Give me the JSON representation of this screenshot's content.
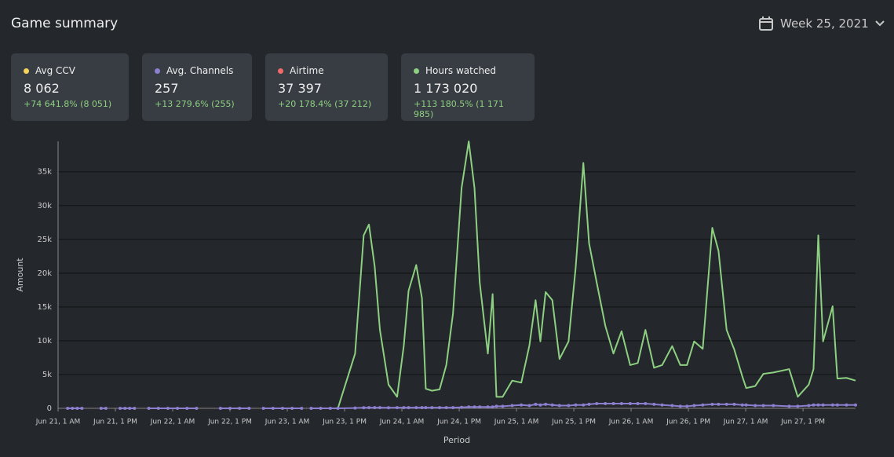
{
  "header": {
    "title": "Game summary",
    "week": "Week 25, 2021"
  },
  "stats": [
    {
      "label": "Avg CCV",
      "value": "8 062",
      "change": "+74 641.8% (8 051)",
      "color": "#f5d35a"
    },
    {
      "label": "Avg. Channels",
      "value": "257",
      "change": "+13 279.6% (255)",
      "color": "#8c7fd0"
    },
    {
      "label": "Airtime",
      "value": "37 397",
      "change": "+20 178.4% (37 212)",
      "color": "#f06a6a"
    },
    {
      "label": "Hours watched",
      "value": "1 173 020",
      "change": "+113 180.5% (1 171 985)",
      "color": "#8ed081"
    }
  ],
  "chart_data": {
    "type": "line",
    "x_label": "Period",
    "y_label": "Amount",
    "grid": true,
    "xlim": [
      0,
      167
    ],
    "ylim": [
      0,
      39500
    ],
    "xticks": [
      {
        "value": 0,
        "label": "Jun 21, 1 AM"
      },
      {
        "value": 12,
        "label": "Jun 21, 1 PM"
      },
      {
        "value": 24,
        "label": "Jun 22, 1 AM"
      },
      {
        "value": 36,
        "label": "Jun 22, 1 PM"
      },
      {
        "value": 48,
        "label": "Jun 23, 1 AM"
      },
      {
        "value": 60,
        "label": "Jun 23, 1 PM"
      },
      {
        "value": 72,
        "label": "Jun 24, 1 AM"
      },
      {
        "value": 84,
        "label": "Jun 24, 1 PM"
      },
      {
        "value": 96,
        "label": "Jun 25, 1 AM"
      },
      {
        "value": 108,
        "label": "Jun 25, 1 PM"
      },
      {
        "value": 120,
        "label": "Jun 26, 1 AM"
      },
      {
        "value": 132,
        "label": "Jun 26, 1 PM"
      },
      {
        "value": 144,
        "label": "Jun 27, 1 AM"
      },
      {
        "value": 156,
        "label": "Jun 27, 1 PM"
      }
    ],
    "yticks": [
      0,
      {
        "value": 5000,
        "label": "5k"
      },
      {
        "value": 10000,
        "label": "10k"
      },
      {
        "value": 15000,
        "label": "15k"
      },
      {
        "value": 20000,
        "label": "20k"
      },
      {
        "value": 25000,
        "label": "25k"
      },
      {
        "value": 30000,
        "label": "30k"
      },
      {
        "value": 35000,
        "label": "35k"
      }
    ],
    "x": [
      2,
      3,
      4,
      5,
      7,
      9,
      10,
      11,
      13,
      14,
      15,
      16,
      17.5,
      19,
      21,
      23,
      25,
      27,
      29,
      31.5,
      34,
      36,
      38,
      40,
      41.5,
      43,
      45,
      47,
      49,
      51,
      52,
      53,
      55,
      57,
      58.6,
      62.2,
      64,
      65.1,
      66.3,
      67.4,
      69.2,
      71,
      72.4,
      73.4,
      75,
      76.2,
      77,
      78.3,
      79.9,
      81.3,
      82.7,
      84.5,
      86,
      87.2,
      88.3,
      90,
      91,
      91.8,
      93.1,
      95.1,
      97,
      98.7,
      100,
      101,
      102.1,
      103.5,
      105,
      106.9,
      108.4,
      110,
      111.2,
      112.8,
      114.6,
      116.3,
      118,
      119.8,
      121.4,
      123,
      124.8,
      126.5,
      128.6,
      130.3,
      131.7,
      133.2,
      135,
      137,
      138.3,
      140,
      141.6,
      143.3,
      144.1,
      146,
      147.7,
      149.8,
      153.1,
      154.9,
      157.2,
      158.2,
      159.2,
      160.2,
      162.2,
      163.2,
      165.1,
      167
    ],
    "series": [
      {
        "color": "#8ed081",
        "markers": false,
        "values": [
          null,
          null,
          null,
          null,
          null,
          null,
          null,
          null,
          null,
          null,
          null,
          null,
          null,
          null,
          null,
          null,
          null,
          null,
          null,
          null,
          null,
          null,
          null,
          null,
          null,
          null,
          null,
          null,
          null,
          null,
          null,
          null,
          null,
          null,
          0,
          8100,
          25600,
          27200,
          21000,
          11600,
          3500,
          1700,
          9300,
          17400,
          21200,
          16300,
          2900,
          2600,
          2800,
          6400,
          14000,
          32600,
          39500,
          32600,
          18600,
          8100,
          16900,
          1700,
          1700,
          4100,
          3800,
          9300,
          16000,
          9900,
          17200,
          16000,
          7300,
          9900,
          20900,
          36300,
          24400,
          18600,
          12200,
          8100,
          11400,
          6400,
          6700,
          11600,
          6000,
          6400,
          9200,
          6400,
          6400,
          9900,
          8800,
          26700,
          23300,
          11600,
          8700,
          4700,
          3000,
          3300,
          5100,
          5300,
          5800,
          1700,
          3500,
          5800,
          25600,
          9900,
          15100,
          4400,
          4500,
          4100
        ]
      },
      {
        "color": "#8c7fd0",
        "markers": true,
        "values": [
          0,
          0,
          0,
          0,
          null,
          0,
          0,
          null,
          0,
          0,
          0,
          0,
          null,
          0,
          0,
          0,
          0,
          0,
          0,
          null,
          0,
          0,
          0,
          0,
          null,
          0,
          0,
          0,
          0,
          0,
          null,
          0,
          0,
          0,
          0,
          50,
          80,
          100,
          100,
          100,
          80,
          100,
          100,
          100,
          100,
          100,
          100,
          100,
          100,
          100,
          100,
          150,
          200,
          200,
          200,
          200,
          200,
          300,
          300,
          400,
          500,
          400,
          600,
          500,
          600,
          500,
          400,
          400,
          500,
          500,
          600,
          700,
          700,
          700,
          700,
          700,
          700,
          700,
          600,
          500,
          400,
          300,
          300,
          400,
          500,
          600,
          600,
          600,
          600,
          500,
          500,
          400,
          400,
          400,
          300,
          300,
          400,
          500,
          500,
          500,
          500,
          500,
          500,
          500
        ]
      }
    ]
  }
}
